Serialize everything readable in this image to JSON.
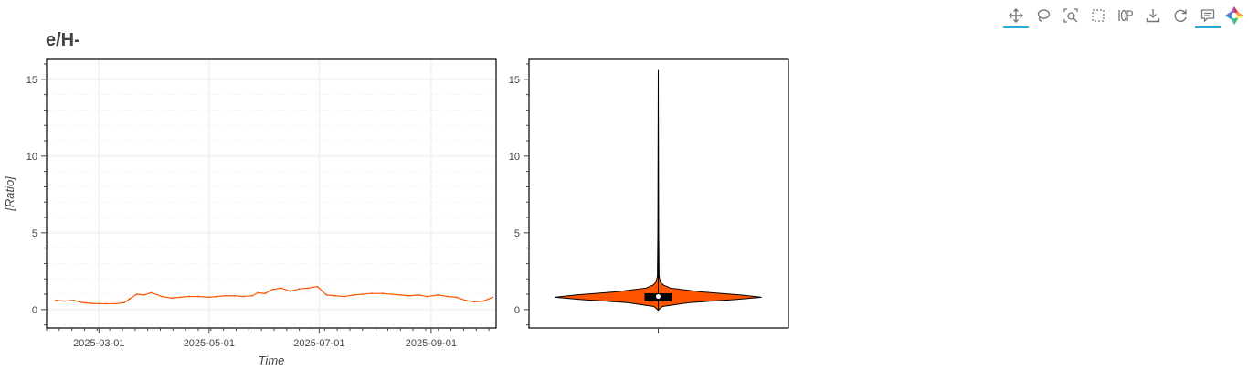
{
  "title": "e/H-",
  "toolbar": {
    "tools": [
      {
        "name": "pan-tool",
        "icon": "move-icon",
        "active": true
      },
      {
        "name": "lasso-select-tool",
        "icon": "lasso-icon",
        "active": false
      },
      {
        "name": "zoom-tool",
        "icon": "zoom-box-icon",
        "active": false
      },
      {
        "name": "box-select-tool",
        "icon": "box-select-icon",
        "active": false
      },
      {
        "name": "wheel-zoom-tool",
        "icon": "wheel-zoom-icon",
        "active": false
      },
      {
        "name": "save-tool",
        "icon": "download-icon",
        "active": false
      },
      {
        "name": "reset-tool",
        "icon": "reset-icon",
        "active": false
      },
      {
        "name": "hover-tool",
        "icon": "hover-icon",
        "active": true
      }
    ]
  },
  "chart_data": [
    {
      "type": "line",
      "title": "",
      "xlabel": "Time",
      "ylabel": "[Ratio]",
      "xlim": [
        "2025-01-31",
        "2025-10-07"
      ],
      "ylim": [
        -1.2,
        16.3
      ],
      "x_ticks": [
        "2025-03-01",
        "2025-05-01",
        "2025-07-01",
        "2025-09-01"
      ],
      "y_ticks": [
        0,
        5,
        10,
        15
      ],
      "grid": true,
      "color": "#ff5500",
      "series": [
        {
          "x": [
            "2025-02-05",
            "2025-02-10",
            "2025-02-15",
            "2025-02-20",
            "2025-02-25",
            "2025-03-01",
            "2025-03-05",
            "2025-03-10",
            "2025-03-15",
            "2025-03-18",
            "2025-03-22",
            "2025-03-26",
            "2025-03-30",
            "2025-04-05",
            "2025-04-10",
            "2025-04-15",
            "2025-04-20",
            "2025-04-25",
            "2025-05-01",
            "2025-05-05",
            "2025-05-10",
            "2025-05-15",
            "2025-05-20",
            "2025-05-25",
            "2025-05-28",
            "2025-06-01",
            "2025-06-05",
            "2025-06-10",
            "2025-06-15",
            "2025-06-20",
            "2025-06-25",
            "2025-06-30",
            "2025-07-05",
            "2025-07-10",
            "2025-07-15",
            "2025-07-20",
            "2025-07-25",
            "2025-07-30",
            "2025-08-05",
            "2025-08-10",
            "2025-08-15",
            "2025-08-20",
            "2025-08-25",
            "2025-08-30",
            "2025-09-05",
            "2025-09-10",
            "2025-09-15",
            "2025-09-20",
            "2025-09-25",
            "2025-09-30",
            "2025-10-05"
          ],
          "y": [
            0.6,
            0.55,
            0.6,
            0.45,
            0.4,
            0.38,
            0.38,
            0.38,
            0.45,
            0.7,
            1.0,
            0.95,
            1.1,
            0.85,
            0.75,
            0.8,
            0.85,
            0.85,
            0.8,
            0.85,
            0.9,
            0.9,
            0.85,
            0.9,
            1.1,
            1.05,
            1.3,
            1.4,
            1.2,
            1.35,
            1.4,
            1.5,
            0.95,
            0.9,
            0.85,
            0.95,
            1.0,
            1.05,
            1.05,
            1.0,
            0.95,
            0.9,
            0.95,
            0.85,
            0.95,
            0.85,
            0.8,
            0.6,
            0.5,
            0.55,
            0.8
          ]
        }
      ]
    },
    {
      "type": "violin",
      "title": "",
      "xlabel": "",
      "ylabel": "",
      "ylim": [
        -1.2,
        16.3
      ],
      "y_ticks": [
        0,
        5,
        10,
        15
      ],
      "color": "#ff5500",
      "min": -0.05,
      "max": 15.6,
      "q1": 0.6,
      "median": 0.85,
      "q3": 1.0,
      "density": [
        {
          "y": -0.05,
          "w": 0.0
        },
        {
          "y": 0.2,
          "w": 0.04
        },
        {
          "y": 0.45,
          "w": 0.3
        },
        {
          "y": 0.65,
          "w": 0.75
        },
        {
          "y": 0.8,
          "w": 1.0
        },
        {
          "y": 0.95,
          "w": 0.8
        },
        {
          "y": 1.15,
          "w": 0.42
        },
        {
          "y": 1.4,
          "w": 0.12
        },
        {
          "y": 1.6,
          "w": 0.05
        },
        {
          "y": 1.8,
          "w": 0.02
        },
        {
          "y": 2.2,
          "w": 0.008
        },
        {
          "y": 5.0,
          "w": 0.004
        },
        {
          "y": 15.6,
          "w": 0.0
        }
      ]
    }
  ]
}
